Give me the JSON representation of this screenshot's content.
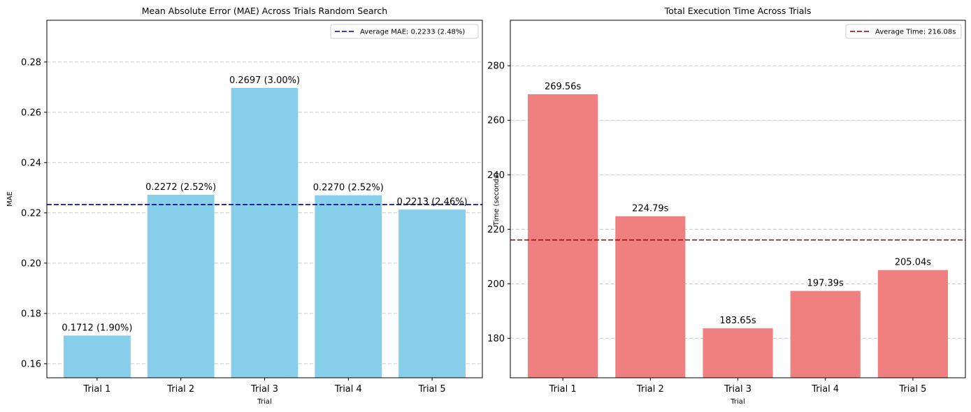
{
  "chart_data": [
    {
      "type": "bar",
      "title": "Mean Absolute Error (MAE) Across Trials Random Search",
      "xlabel": "Trial",
      "ylabel": "MAE",
      "categories": [
        "Trial 1",
        "Trial 2",
        "Trial 3",
        "Trial 4",
        "Trial 5"
      ],
      "values": [
        0.1712,
        0.2272,
        0.2697,
        0.227,
        0.2213
      ],
      "data_labels": [
        "0.1712 (1.90%)",
        "0.2272 (2.52%)",
        "0.2697 (3.00%)",
        "0.2270 (2.52%)",
        "0.2213 (2.46%)"
      ],
      "ylim": [
        0.1544,
        0.2966
      ],
      "yticks": [
        0.16,
        0.18,
        0.2,
        0.22,
        0.24,
        0.26,
        0.28
      ],
      "ytick_labels": [
        "0.16",
        "0.18",
        "0.20",
        "0.22",
        "0.24",
        "0.26",
        "0.28"
      ],
      "reference_line": {
        "value": 0.2233,
        "label": "Average MAE: 0.2233 (2.48%)",
        "color": "#00008b",
        "style": "dashed"
      },
      "bar_color": "#87ceeb",
      "grid": "y-dashed",
      "legend_position": "top-right"
    },
    {
      "type": "bar",
      "title": "Total Execution Time Across Trials",
      "xlabel": "Trial",
      "ylabel": "Time (seconds)",
      "categories": [
        "Trial 1",
        "Trial 2",
        "Trial 3",
        "Trial 4",
        "Trial 5"
      ],
      "values": [
        269.56,
        224.79,
        183.65,
        197.39,
        205.04
      ],
      "data_labels": [
        "269.56s",
        "224.79s",
        "183.65s",
        "197.39s",
        "205.04s"
      ],
      "ylim": [
        165.5,
        296.7
      ],
      "yticks": [
        180,
        200,
        220,
        240,
        260,
        280
      ],
      "ytick_labels": [
        "180",
        "200",
        "220",
        "240",
        "260",
        "280"
      ],
      "reference_line": {
        "value": 216.08,
        "label": "Average Time: 216.08s",
        "color": "#8b0000",
        "style": "dashed"
      },
      "bar_color": "#f08080",
      "grid": "y-dashed",
      "legend_position": "top-right"
    }
  ]
}
